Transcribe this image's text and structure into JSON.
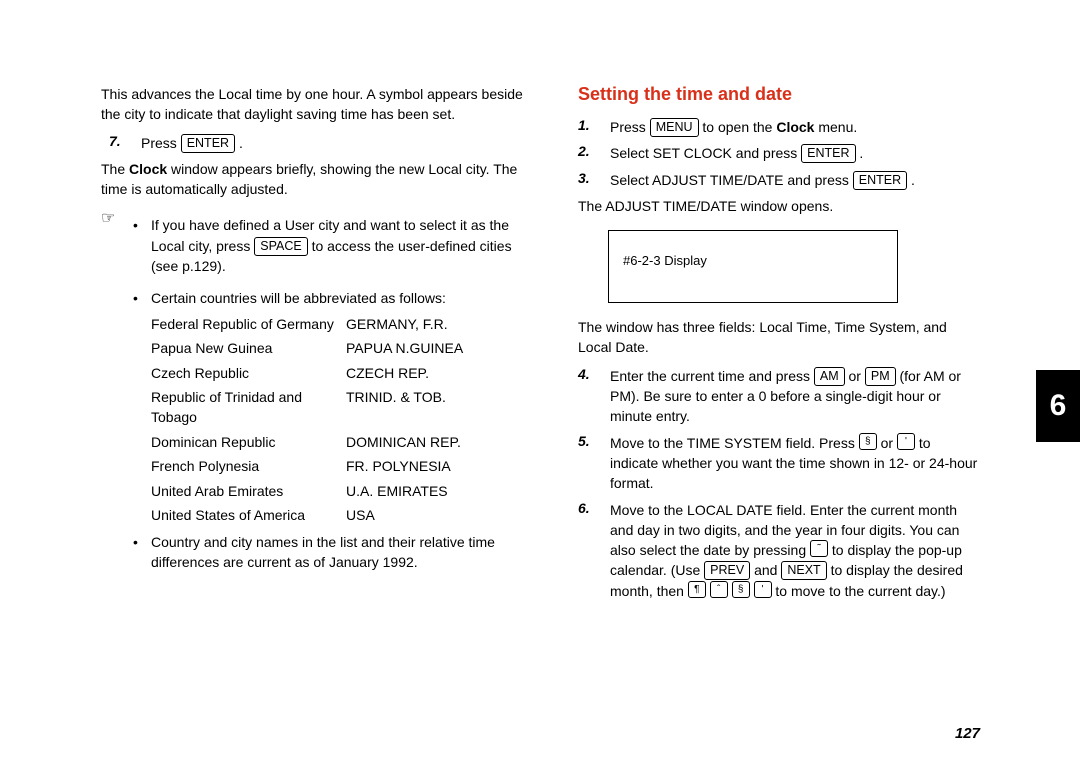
{
  "colors": {
    "heading_color": "#d9301a",
    "text_color": "#000000",
    "background": "#ffffff",
    "tab_bg": "#000000",
    "tab_fg": "#ffffff"
  },
  "fonts": {
    "body_size": 14,
    "heading_size": 18,
    "tab_size": 30
  },
  "left": {
    "intro": "This advances the Local time by one hour. A symbol appears beside the city to indicate that daylight saving time has been set.",
    "step7_num": "7.",
    "step7_prefix": "Press ",
    "step7_key": "ENTER",
    "step7_suffix": " .",
    "after7_a": "The ",
    "after7_b_bold": "Clock",
    "after7_c": " window appears briefly, showing the new Local city. The time is automatically adjusted.",
    "note_icon": "☞",
    "note1_a": "If you have defined a User city and want to select it as the Local city, press ",
    "note1_key": "SPACE",
    "note1_b": " to access the user-defined cities (see p.129).",
    "note2": "Certain countries will be abbreviated as follows:",
    "abbr": [
      {
        "country": "Federal Republic of Germany",
        "code": "GERMANY, F.R."
      },
      {
        "country": "Papua New Guinea",
        "code": "PAPUA N.GUINEA"
      },
      {
        "country": "Czech Republic",
        "code": "CZECH REP."
      },
      {
        "country": "Republic of Trinidad and Tobago",
        "code": "TRINID. & TOB."
      },
      {
        "country": "Dominican Republic",
        "code": "DOMINICAN REP."
      },
      {
        "country": "French Polynesia",
        "code": "FR. POLYNESIA"
      },
      {
        "country": "United Arab Emirates",
        "code": "U.A. EMIRATES"
      },
      {
        "country": "United States of America",
        "code": "USA"
      }
    ],
    "note3": "Country and city names in the list and their relative time differences are current as of January 1992."
  },
  "right": {
    "heading": "Setting the time and date",
    "s1_num": "1.",
    "s1_a": "Press ",
    "s1_key": "MENU",
    "s1_b": " to open the ",
    "s1_bold": "Clock",
    "s1_c": " menu.",
    "s2_num": "2.",
    "s2_a": "Select SET CLOCK and press ",
    "s2_key": "ENTER",
    "s2_b": " .",
    "s3_num": "3.",
    "s3_a": "Select ADJUST TIME/DATE and press ",
    "s3_key": "ENTER",
    "s3_b": " .",
    "after3": "The ADJUST TIME/DATE window opens.",
    "display_box": "#6-2-3 Display",
    "after_box": "The window has three fields: Local Time, Time System, and Local Date.",
    "s4_num": "4.",
    "s4_a": "Enter the current time and press ",
    "s4_key1": "AM",
    "s4_b": " or ",
    "s4_key2": "PM",
    "s4_c": " (for AM or PM). Be sure to enter a 0 before a single-digit hour or minute entry.",
    "s5_num": "5.",
    "s5_a": "Move to the TIME SYSTEM field. Press ",
    "s5_key1": "§",
    "s5_b": " or ",
    "s5_key2": "'",
    "s5_c": " to indicate whether you want the time shown in 12- or 24-hour format.",
    "s6_num": "6.",
    "s6_a": "Move to the LOCAL DATE field. Enter the current month and day in two digits, and the year in four digits. You can also select the date by pressing ",
    "s6_key1": "˜",
    "s6_b": " to display the pop-up calendar. (Use ",
    "s6_key2": "PREV",
    "s6_c": " and ",
    "s6_key3": "NEXT",
    "s6_d": " to display the desired month, then ",
    "s6_key4": "¶",
    "s6_key5": "ˆ",
    "s6_key6": "§",
    "s6_key7": "'",
    "s6_e": " to move to the current day.)"
  },
  "chapter_tab": "6",
  "page_number": "127"
}
